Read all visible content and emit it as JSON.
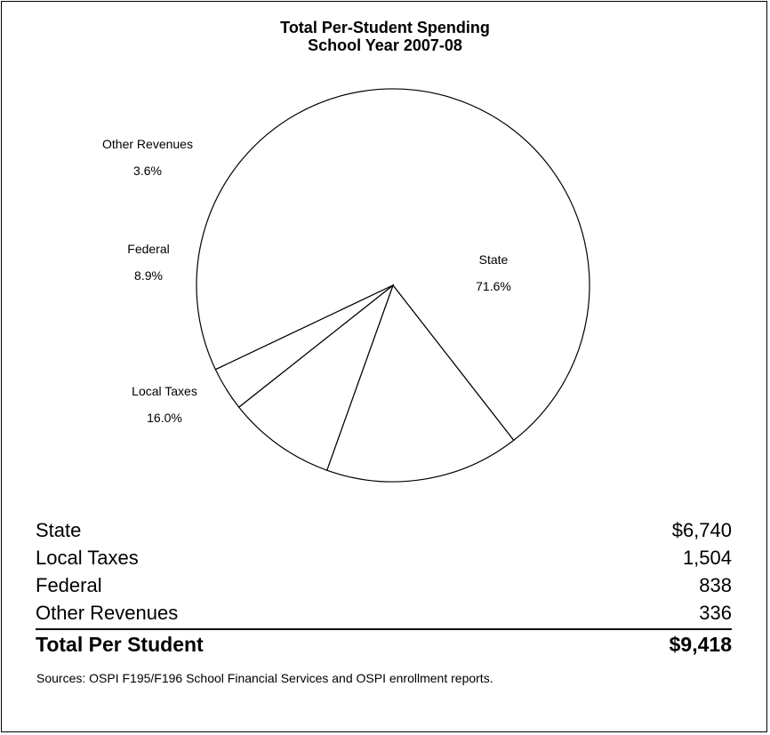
{
  "chart_data": {
    "type": "pie",
    "title": "Total Per-Student Spending",
    "subtitle": "School Year 2007-08",
    "slices": [
      {
        "label": "State",
        "percent_label": "71.6%",
        "value": 71.6
      },
      {
        "label": "Local Taxes",
        "percent_label": "16.0%",
        "value": 16.0
      },
      {
        "label": "Federal",
        "percent_label": "8.9%",
        "value": 8.9
      },
      {
        "label": "Other Revenues",
        "percent_label": "3.6%",
        "value": 3.6
      }
    ],
    "fill_color": "#ffffff",
    "stroke_color": "#000000"
  },
  "table": {
    "rows": [
      {
        "label": "State",
        "value": "$6,740"
      },
      {
        "label": "Local Taxes",
        "value": "1,504"
      },
      {
        "label": "Federal",
        "value": "838"
      },
      {
        "label": "Other Revenues",
        "value": "336"
      }
    ],
    "total": {
      "label": "Total Per Student",
      "value": "$9,418"
    }
  },
  "sources": "Sources:  OSPI F195/F196 School Financial Services and OSPI enrollment reports."
}
